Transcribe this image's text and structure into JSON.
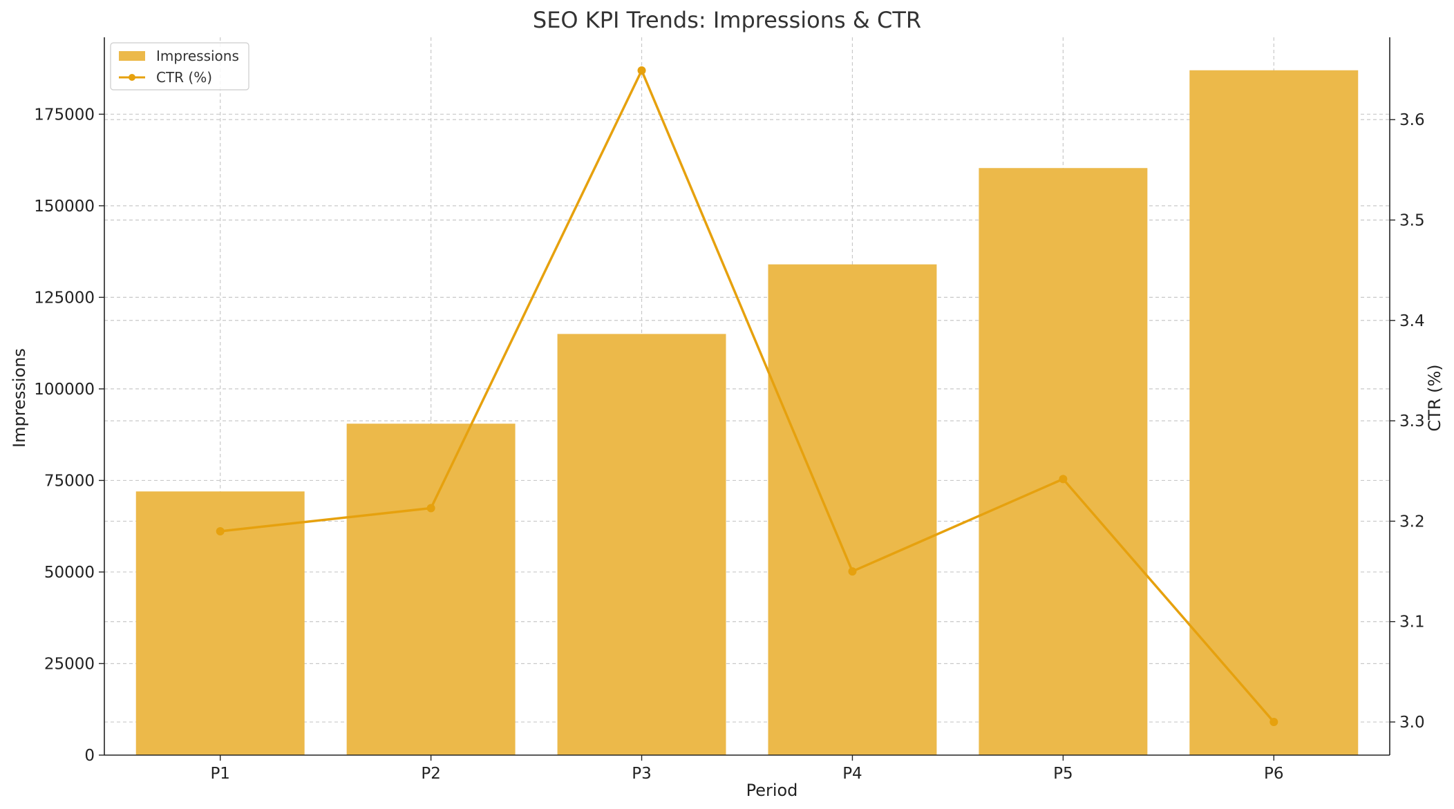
{
  "chart_data": {
    "type": "bar",
    "title": "SEO KPI Trends: Impressions & CTR",
    "xlabel": "Period",
    "ylabel": "Impressions",
    "y2label": "CTR (%)",
    "categories": [
      "P1",
      "P2",
      "P3",
      "P4",
      "P5",
      "P6"
    ],
    "series": [
      {
        "name": "Impressions",
        "type": "bar",
        "axis": "left",
        "color": "#ecb94a",
        "values": [
          72000,
          90500,
          115000,
          134000,
          160300,
          187000
        ]
      },
      {
        "name": "CTR (%)",
        "type": "line",
        "axis": "right",
        "color": "#e6a10e",
        "values": [
          3.19,
          3.213,
          3.649,
          3.15,
          3.242,
          3.0
        ]
      }
    ],
    "ylim": [
      0,
      196000
    ],
    "y_ticks": [
      0,
      25000,
      50000,
      75000,
      100000,
      125000,
      150000,
      175000
    ],
    "y_tick_labels": [
      "0",
      "25000",
      "50000",
      "75000",
      "100000",
      "125000",
      "150000",
      "175000"
    ],
    "y2lim": [
      2.967,
      3.682
    ],
    "y2_ticks": [
      3.0,
      3.1,
      3.2,
      3.3,
      3.4,
      3.5,
      3.6
    ],
    "y2_tick_labels": [
      "3.0",
      "3.1",
      "3.2",
      "3.3",
      "3.4",
      "3.5",
      "3.6"
    ],
    "grid": true,
    "legend_position": "top-left"
  }
}
